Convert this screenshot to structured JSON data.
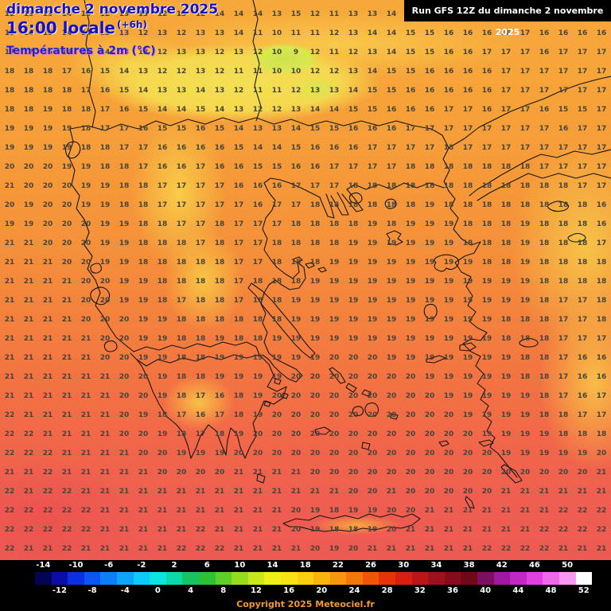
{
  "header": {
    "date_line": "dimanche 2 novembre 2025",
    "time_line": "16:00 locale",
    "time_offset": "(+6h)",
    "param_line": "Températures à 2m (°C)",
    "run_info": "Run GFS 12Z du dimanche 2 novembre 2025"
  },
  "footer": {
    "copyright": "Copyright 2025 Meteociel.fr"
  },
  "colors": {
    "header_blue": "#1212cc",
    "param_magenta_shadow": "#f06af0",
    "map_number": "#45453c",
    "copyright_orange": "#f49a2a",
    "bar_background": "#000000"
  },
  "scale": {
    "unit": "°C",
    "top_labels": [
      "-14",
      "-10",
      "-6",
      "-2",
      "2",
      "6",
      "10",
      "14",
      "18",
      "22",
      "26",
      "30",
      "34",
      "38",
      "42",
      "46",
      "50"
    ],
    "bottom_labels": [
      "-12",
      "-8",
      "-4",
      "0",
      "4",
      "8",
      "12",
      "16",
      "20",
      "24",
      "28",
      "32",
      "36",
      "40",
      "44",
      "48",
      "52"
    ],
    "colors": [
      "#050354",
      "#0a0ea6",
      "#0b2fe3",
      "#0b55f2",
      "#0c7ef8",
      "#0ca5fa",
      "#0ccbf8",
      "#0ce4e0",
      "#0cd8a8",
      "#18c462",
      "#2cc234",
      "#5ecf28",
      "#96dc1e",
      "#c8e81a",
      "#eeee18",
      "#f8e414",
      "#f9cf10",
      "#f9b40d",
      "#f8970b",
      "#f67709",
      "#f25408",
      "#ea3208",
      "#d91f10",
      "#bc1518",
      "#9e101e",
      "#840c1d",
      "#6e0a18",
      "#7c1060",
      "#a018a0",
      "#c428c4",
      "#e040e0",
      "#ee68ea",
      "#f898f2",
      "#ffffff"
    ]
  },
  "chart_data": {
    "type": "heatmap",
    "title": "Températures à 2m (°C)",
    "unit": "°C",
    "grid_cols": 32,
    "grid_rows": 29,
    "values": [
      [
        12,
        13,
        13,
        14,
        13,
        12,
        13,
        13,
        12,
        13,
        12,
        14,
        14,
        14,
        13,
        15,
        12,
        11,
        13,
        13,
        14,
        14,
        15,
        15,
        15,
        16,
        16,
        16,
        15,
        15,
        16,
        16
      ],
      [
        13,
        14,
        15,
        14,
        14,
        13,
        13,
        12,
        13,
        12,
        13,
        13,
        14,
        11,
        10,
        11,
        11,
        12,
        13,
        14,
        14,
        15,
        15,
        16,
        16,
        16,
        16,
        17,
        16,
        16,
        16,
        16
      ],
      [
        17,
        17,
        16,
        16,
        15,
        14,
        13,
        12,
        12,
        13,
        13,
        12,
        13,
        12,
        10,
        9,
        12,
        11,
        12,
        13,
        14,
        15,
        15,
        16,
        16,
        17,
        17,
        17,
        16,
        17,
        17,
        17
      ],
      [
        18,
        18,
        18,
        17,
        16,
        15,
        14,
        13,
        12,
        12,
        13,
        12,
        11,
        11,
        10,
        10,
        12,
        12,
        13,
        14,
        15,
        15,
        16,
        16,
        16,
        16,
        17,
        17,
        17,
        17,
        17,
        17
      ],
      [
        18,
        18,
        18,
        18,
        17,
        16,
        15,
        14,
        13,
        13,
        14,
        13,
        12,
        11,
        11,
        12,
        13,
        13,
        14,
        15,
        15,
        16,
        16,
        16,
        16,
        16,
        17,
        17,
        17,
        17,
        17,
        17
      ],
      [
        18,
        18,
        19,
        18,
        18,
        17,
        16,
        15,
        14,
        14,
        15,
        14,
        13,
        12,
        12,
        13,
        14,
        14,
        15,
        15,
        16,
        16,
        16,
        17,
        17,
        16,
        17,
        17,
        16,
        15,
        15,
        17
      ],
      [
        19,
        19,
        19,
        19,
        18,
        17,
        17,
        16,
        15,
        15,
        16,
        15,
        14,
        13,
        13,
        14,
        15,
        15,
        16,
        16,
        16,
        17,
        17,
        17,
        17,
        17,
        17,
        17,
        17,
        16,
        17,
        17
      ],
      [
        19,
        19,
        19,
        19,
        18,
        18,
        17,
        17,
        16,
        16,
        16,
        16,
        15,
        14,
        14,
        15,
        16,
        16,
        16,
        17,
        17,
        17,
        17,
        18,
        17,
        17,
        17,
        17,
        17,
        17,
        17,
        17
      ],
      [
        20,
        20,
        20,
        19,
        19,
        18,
        18,
        17,
        16,
        16,
        17,
        16,
        16,
        15,
        15,
        16,
        16,
        17,
        17,
        17,
        17,
        18,
        18,
        18,
        18,
        18,
        18,
        18,
        17,
        17,
        17,
        17
      ],
      [
        21,
        20,
        20,
        20,
        19,
        19,
        18,
        18,
        17,
        17,
        17,
        17,
        16,
        16,
        16,
        17,
        17,
        17,
        18,
        18,
        18,
        18,
        18,
        18,
        18,
        18,
        18,
        18,
        18,
        18,
        17,
        17
      ],
      [
        20,
        19,
        20,
        20,
        19,
        19,
        18,
        18,
        17,
        17,
        17,
        17,
        17,
        16,
        17,
        17,
        18,
        18,
        18,
        18,
        18,
        18,
        19,
        18,
        18,
        18,
        18,
        18,
        18,
        18,
        18,
        16
      ],
      [
        19,
        19,
        20,
        20,
        20,
        19,
        19,
        18,
        18,
        17,
        17,
        18,
        17,
        17,
        17,
        18,
        18,
        18,
        18,
        19,
        18,
        19,
        19,
        19,
        18,
        18,
        18,
        19,
        18,
        18,
        18,
        16
      ],
      [
        21,
        21,
        20,
        20,
        20,
        19,
        19,
        18,
        18,
        18,
        17,
        18,
        17,
        17,
        18,
        18,
        18,
        18,
        19,
        19,
        19,
        19,
        19,
        19,
        18,
        18,
        18,
        19,
        18,
        18,
        18,
        17
      ],
      [
        21,
        21,
        21,
        20,
        20,
        19,
        19,
        18,
        18,
        18,
        18,
        18,
        17,
        17,
        18,
        18,
        18,
        19,
        19,
        19,
        19,
        19,
        19,
        19,
        19,
        18,
        18,
        19,
        18,
        18,
        18,
        18
      ],
      [
        21,
        21,
        21,
        21,
        20,
        20,
        19,
        19,
        18,
        18,
        18,
        18,
        17,
        18,
        18,
        18,
        19,
        19,
        19,
        19,
        19,
        19,
        19,
        19,
        19,
        19,
        19,
        19,
        18,
        18,
        18,
        18
      ],
      [
        21,
        21,
        21,
        21,
        20,
        20,
        19,
        19,
        18,
        17,
        18,
        18,
        17,
        18,
        18,
        19,
        19,
        19,
        19,
        19,
        19,
        19,
        19,
        19,
        19,
        19,
        19,
        19,
        18,
        17,
        17,
        18
      ],
      [
        21,
        21,
        21,
        21,
        20,
        20,
        20,
        19,
        19,
        18,
        18,
        18,
        18,
        18,
        18,
        19,
        19,
        19,
        19,
        19,
        19,
        19,
        19,
        19,
        19,
        19,
        18,
        18,
        18,
        17,
        17,
        18
      ],
      [
        21,
        21,
        21,
        21,
        21,
        20,
        20,
        19,
        19,
        18,
        18,
        19,
        18,
        18,
        19,
        19,
        19,
        19,
        19,
        19,
        19,
        19,
        19,
        19,
        19,
        19,
        18,
        18,
        18,
        17,
        17,
        17
      ],
      [
        21,
        21,
        21,
        21,
        21,
        20,
        20,
        19,
        19,
        18,
        18,
        19,
        19,
        19,
        19,
        19,
        19,
        20,
        20,
        20,
        19,
        19,
        19,
        19,
        19,
        19,
        19,
        18,
        18,
        17,
        16,
        16
      ],
      [
        21,
        21,
        21,
        21,
        21,
        21,
        20,
        20,
        19,
        18,
        18,
        19,
        19,
        19,
        19,
        20,
        20,
        20,
        20,
        20,
        20,
        20,
        19,
        19,
        19,
        19,
        19,
        18,
        18,
        17,
        16,
        16
      ],
      [
        21,
        21,
        21,
        21,
        21,
        21,
        20,
        20,
        19,
        18,
        17,
        16,
        18,
        19,
        20,
        20,
        20,
        20,
        20,
        20,
        20,
        20,
        20,
        19,
        19,
        19,
        19,
        19,
        18,
        17,
        16,
        17
      ],
      [
        22,
        21,
        21,
        21,
        21,
        21,
        20,
        19,
        18,
        17,
        16,
        17,
        18,
        19,
        20,
        20,
        20,
        20,
        20,
        20,
        20,
        20,
        20,
        20,
        19,
        19,
        19,
        19,
        18,
        18,
        17,
        17
      ],
      [
        22,
        22,
        21,
        21,
        21,
        21,
        20,
        20,
        19,
        18,
        17,
        18,
        19,
        20,
        20,
        20,
        20,
        20,
        20,
        20,
        20,
        20,
        20,
        20,
        20,
        19,
        19,
        19,
        19,
        18,
        18,
        18
      ],
      [
        22,
        22,
        22,
        21,
        21,
        21,
        21,
        20,
        20,
        19,
        19,
        19,
        20,
        20,
        20,
        20,
        20,
        20,
        20,
        20,
        20,
        20,
        20,
        20,
        20,
        20,
        19,
        19,
        19,
        19,
        19,
        20
      ],
      [
        21,
        21,
        22,
        21,
        21,
        21,
        21,
        21,
        20,
        20,
        20,
        20,
        21,
        21,
        21,
        21,
        20,
        20,
        20,
        20,
        20,
        20,
        20,
        20,
        20,
        20,
        20,
        20,
        20,
        20,
        20,
        21
      ],
      [
        22,
        21,
        22,
        22,
        21,
        21,
        21,
        21,
        21,
        21,
        21,
        21,
        21,
        21,
        21,
        21,
        21,
        21,
        20,
        20,
        21,
        20,
        20,
        20,
        20,
        20,
        21,
        21,
        21,
        21,
        21,
        21
      ],
      [
        22,
        22,
        22,
        22,
        22,
        21,
        21,
        21,
        21,
        21,
        21,
        21,
        21,
        21,
        21,
        20,
        19,
        18,
        19,
        19,
        20,
        20,
        21,
        21,
        21,
        21,
        21,
        21,
        21,
        22,
        22,
        22
      ],
      [
        22,
        22,
        22,
        22,
        22,
        21,
        21,
        21,
        21,
        21,
        22,
        21,
        21,
        21,
        21,
        20,
        19,
        18,
        18,
        19,
        20,
        21,
        21,
        21,
        21,
        21,
        21,
        21,
        22,
        22,
        22,
        22
      ],
      [
        22,
        21,
        21,
        22,
        21,
        21,
        21,
        21,
        21,
        22,
        22,
        22,
        21,
        21,
        21,
        21,
        20,
        19,
        20,
        21,
        21,
        21,
        21,
        21,
        21,
        22,
        22,
        22,
        22,
        21,
        21,
        21
      ]
    ]
  }
}
